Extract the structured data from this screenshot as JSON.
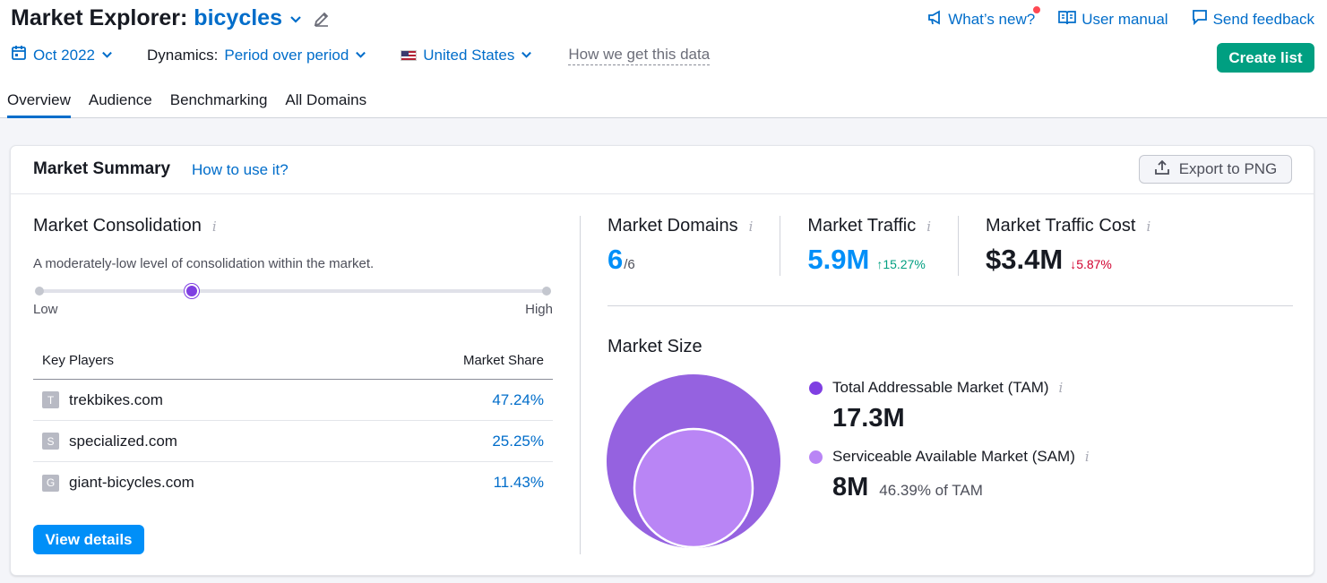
{
  "header": {
    "title_prefix": "Market Explorer:",
    "keyword": "bicycles",
    "links": {
      "whats_new": "What’s new?",
      "user_manual": "User manual",
      "send_feedback": "Send feedback"
    }
  },
  "filters": {
    "date": "Oct 2022",
    "dynamics_label": "Dynamics:",
    "dynamics_value": "Period over period",
    "country": "United States",
    "how_data": "How we get this data"
  },
  "create_list": "Create list",
  "tabs": [
    {
      "label": "Overview",
      "active": true
    },
    {
      "label": "Audience",
      "active": false
    },
    {
      "label": "Benchmarking",
      "active": false
    },
    {
      "label": "All Domains",
      "active": false
    }
  ],
  "summary": {
    "title": "Market Summary",
    "how_to_use": "How to use it?",
    "export": "Export to PNG"
  },
  "consolidation": {
    "title": "Market Consolidation",
    "description": "A moderately-low level of consolidation within the market.",
    "low": "Low",
    "high": "High",
    "level": 0.3
  },
  "key_players": {
    "col_players": "Key Players",
    "col_share": "Market Share",
    "rows": [
      {
        "letter": "T",
        "domain": "trekbikes.com",
        "share": "47.24%"
      },
      {
        "letter": "S",
        "domain": "specialized.com",
        "share": "25.25%"
      },
      {
        "letter": "G",
        "domain": "giant-bicycles.com",
        "share": "11.43%"
      }
    ]
  },
  "view_details": "View details",
  "metrics": {
    "domains": {
      "label": "Market Domains",
      "value": "6",
      "total": "/6"
    },
    "traffic": {
      "label": "Market Traffic",
      "value": "5.9M",
      "delta": "15.27%"
    },
    "cost": {
      "label": "Market Traffic Cost",
      "value": "$3.4M",
      "delta": "5.87%"
    }
  },
  "market_size": {
    "title": "Market Size",
    "tam": {
      "label": "Total Addressable Market (TAM)",
      "value": "17.3M",
      "color": "#9562e0"
    },
    "sam": {
      "label": "Serviceable Available Market (SAM)",
      "value": "8M",
      "pct": "46.39% of TAM",
      "color": "#b985f5"
    }
  },
  "icons": [
    "calendar-icon",
    "chevron-down-icon",
    "pencil-icon",
    "megaphone-icon",
    "book-icon",
    "feedback-icon",
    "us-flag-icon",
    "export-icon",
    "info-icon",
    "arrow-up-icon",
    "arrow-down-icon"
  ]
}
